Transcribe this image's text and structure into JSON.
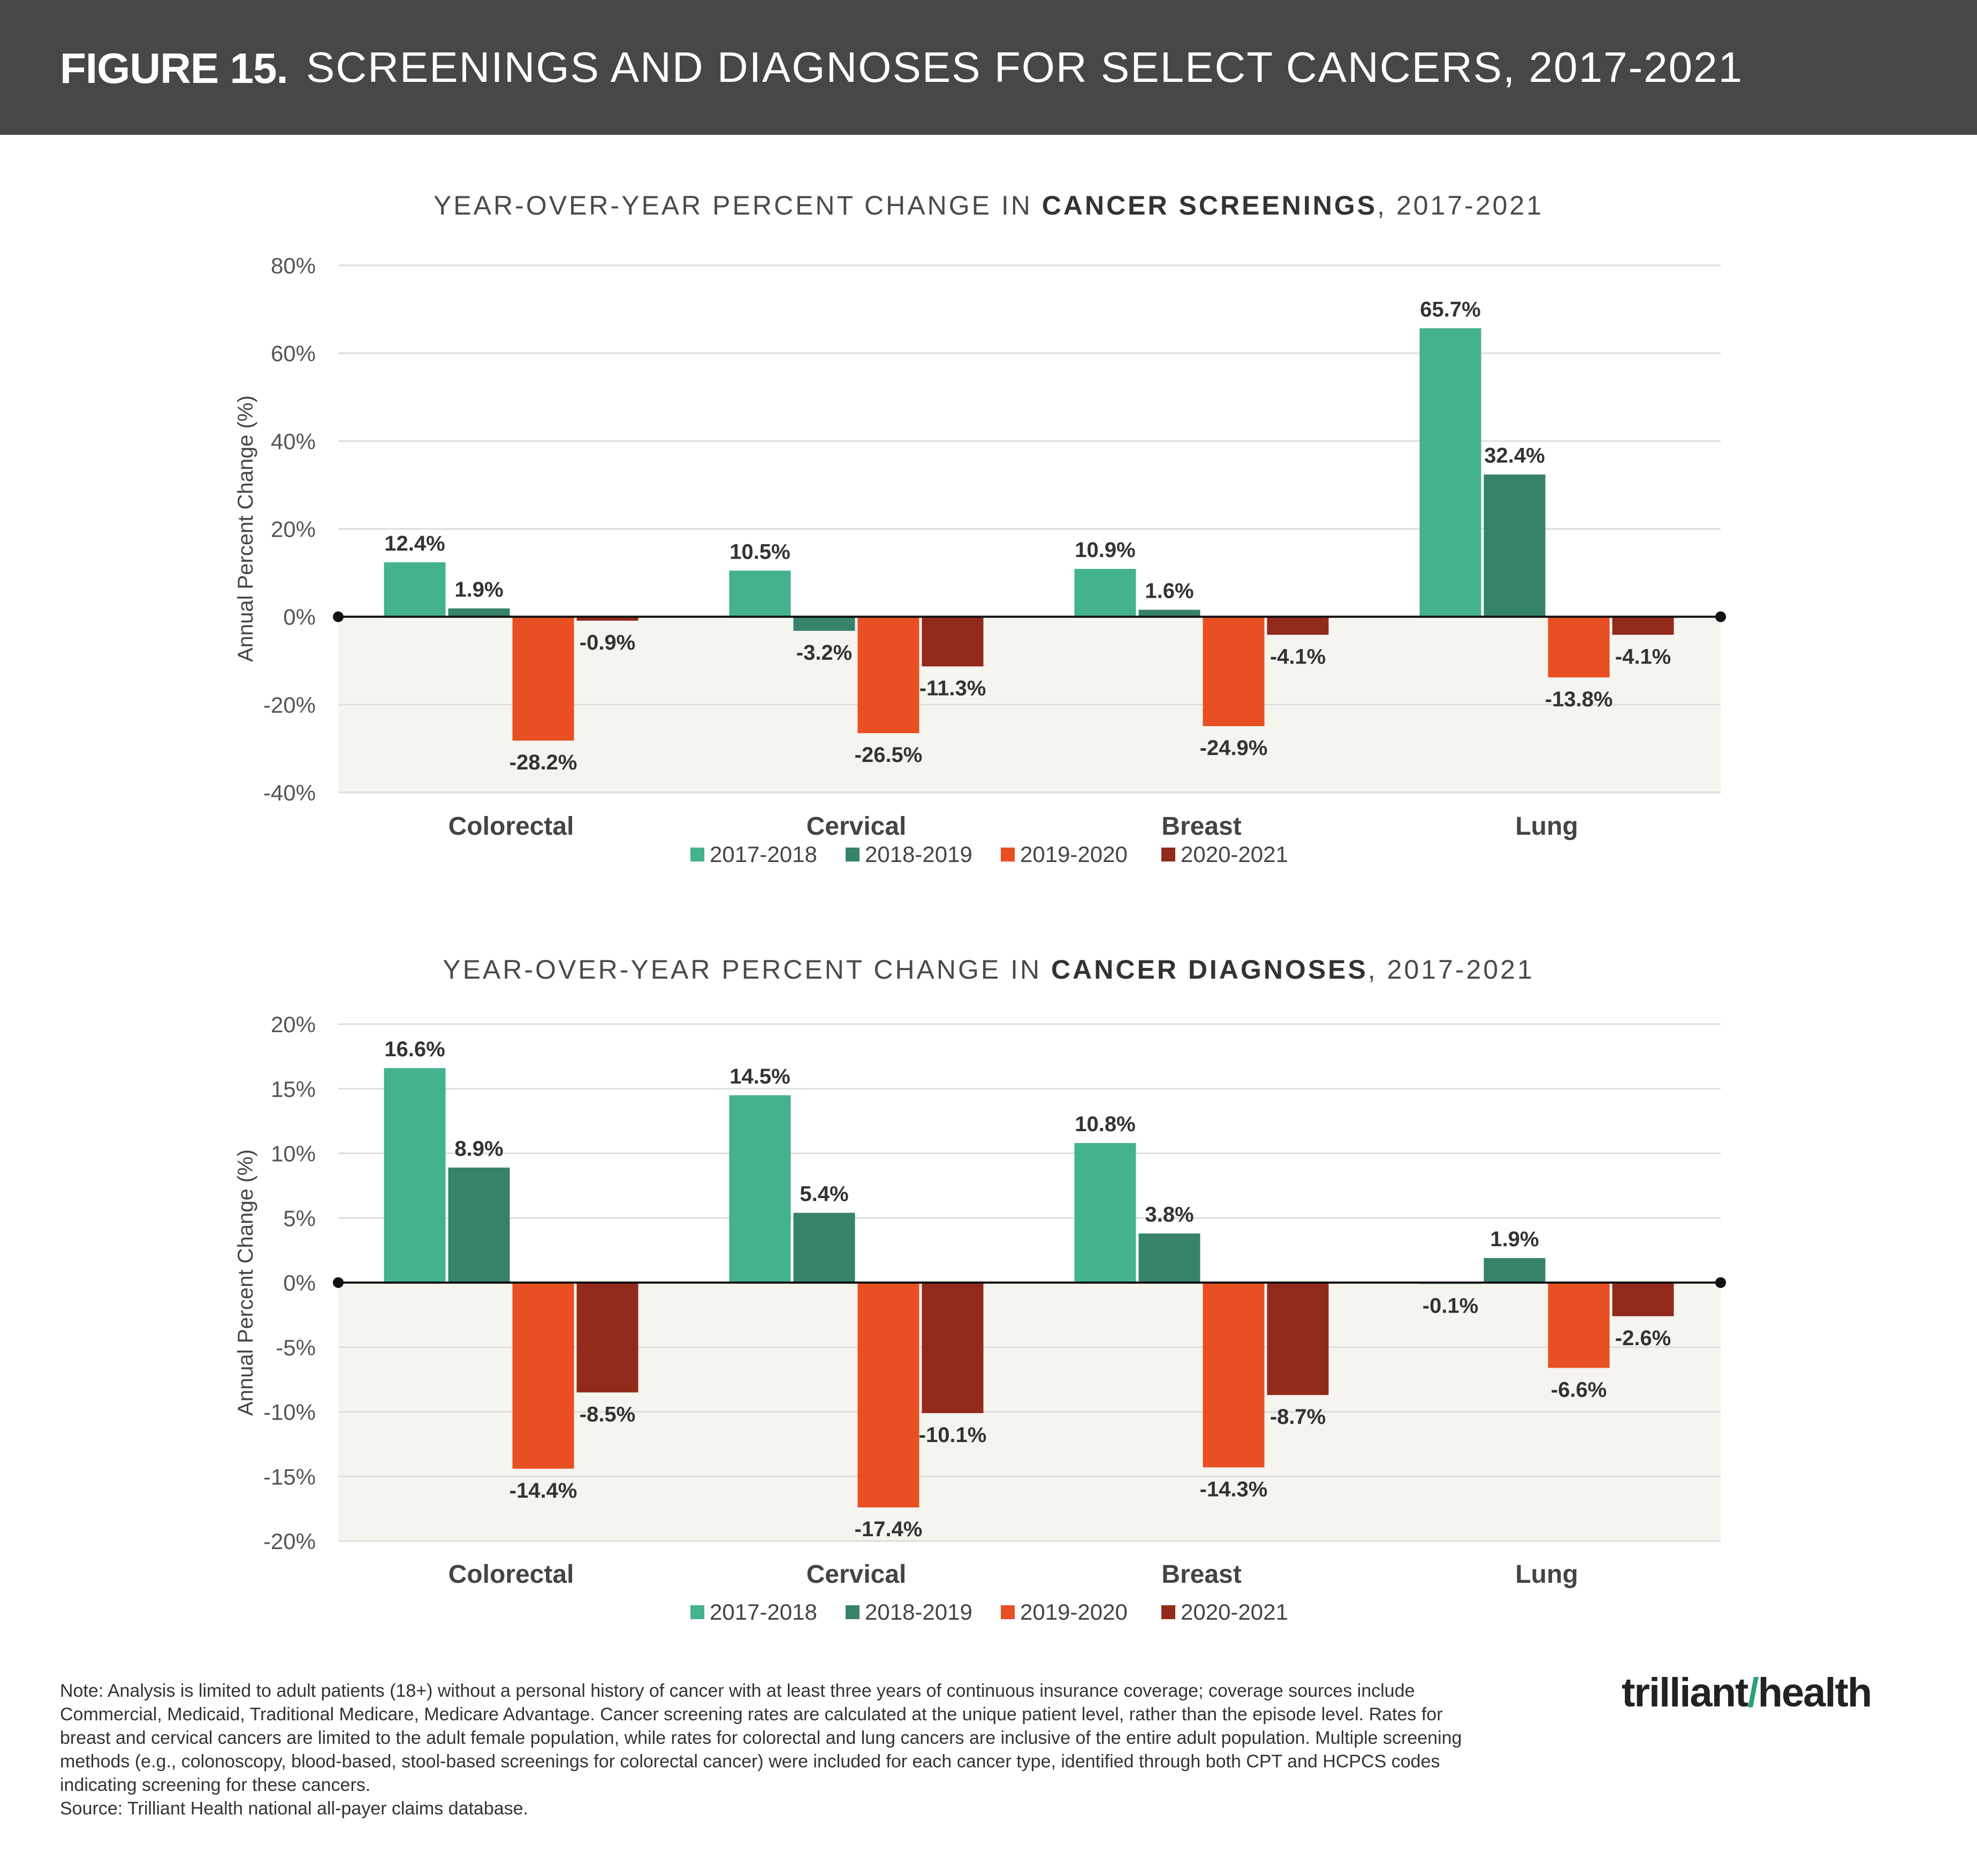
{
  "header": {
    "figure_label": "FIGURE 15.",
    "title": "SCREENINGS AND DIAGNOSES FOR SELECT CANCERS, 2017-2021"
  },
  "colors": {
    "2017-2018": "#43b28d",
    "2018-2019": "#36826a",
    "2019-2020": "#e84f22",
    "2020-2021": "#922a1c",
    "negative_band": "#f5f4ef",
    "header_bg": "#474747"
  },
  "chart_data": [
    {
      "type": "bar",
      "title_pre": "YEAR-OVER-YEAR PERCENT CHANGE IN ",
      "title_bold": "CANCER SCREENINGS",
      "title_post": ", 2017-2021",
      "ylabel": "Annual Percent Change (%)",
      "xlabel": "",
      "ylim": [
        -40,
        80
      ],
      "yticks": [
        80,
        60,
        40,
        20,
        0,
        -20,
        -40
      ],
      "ytick_labels": [
        "80%",
        "60%",
        "40%",
        "20%",
        "0%",
        "-20%",
        "-40%"
      ],
      "categories": [
        "Colorectal",
        "Cervical",
        "Breast",
        "Lung"
      ],
      "series": [
        {
          "name": "2017-2018",
          "values": [
            12.4,
            10.5,
            10.9,
            65.7
          ],
          "labels": [
            "12.4%",
            "10.5%",
            "10.9%",
            "65.7%"
          ]
        },
        {
          "name": "2018-2019",
          "values": [
            1.9,
            -3.2,
            1.6,
            32.4
          ],
          "labels": [
            "1.9%",
            "-3.2%",
            "1.6%",
            "32.4%"
          ]
        },
        {
          "name": "2019-2020",
          "values": [
            -28.2,
            -26.5,
            -24.9,
            -13.8
          ],
          "labels": [
            "-28.2%",
            "-26.5%",
            "-24.9%",
            "-13.8%"
          ]
        },
        {
          "name": "2020-2021",
          "values": [
            -0.9,
            -11.3,
            -4.1,
            -4.1
          ],
          "labels": [
            "-0.9%",
            "-11.3%",
            "-4.1%",
            "-4.1%"
          ]
        }
      ],
      "grid": true,
      "legend": "bottom"
    },
    {
      "type": "bar",
      "title_pre": "YEAR-OVER-YEAR PERCENT CHANGE IN ",
      "title_bold": "CANCER DIAGNOSES",
      "title_post": ", 2017-2021",
      "ylabel": "Annual Percent Change (%)",
      "xlabel": "",
      "ylim": [
        -20,
        20
      ],
      "yticks": [
        20,
        15,
        10,
        5,
        0,
        -5,
        -10,
        -15,
        -20
      ],
      "ytick_labels": [
        "20%",
        "15%",
        "10%",
        "5%",
        "0%",
        "-5%",
        "-10%",
        "-15%",
        "-20%"
      ],
      "categories": [
        "Colorectal",
        "Cervical",
        "Breast",
        "Lung"
      ],
      "series": [
        {
          "name": "2017-2018",
          "values": [
            16.6,
            14.5,
            10.8,
            -0.1
          ],
          "labels": [
            "16.6%",
            "14.5%",
            "10.8%",
            "-0.1%"
          ]
        },
        {
          "name": "2018-2019",
          "values": [
            8.9,
            5.4,
            3.8,
            1.9
          ],
          "labels": [
            "8.9%",
            "5.4%",
            "3.8%",
            "1.9%"
          ]
        },
        {
          "name": "2019-2020",
          "values": [
            -14.4,
            -17.4,
            -14.3,
            -6.6
          ],
          "labels": [
            "-14.4%",
            "-17.4%",
            "-14.3%",
            "-6.6%"
          ]
        },
        {
          "name": "2020-2021",
          "values": [
            -8.5,
            -10.1,
            -8.7,
            -2.6
          ],
          "labels": [
            "-8.5%",
            "-10.1%",
            "-8.7%",
            "-2.6%"
          ]
        }
      ],
      "grid": true,
      "legend": "bottom"
    }
  ],
  "note": {
    "lines": [
      "Note: Analysis is limited to adult patients (18+) without a personal history of cancer with at least three years of continuous insurance coverage; coverage sources include",
      "Commercial, Medicaid, Traditional Medicare, Medicare Advantage. Cancer screening rates are calculated at the unique patient level, rather than the episode level. Rates for",
      "breast and cervical cancers are limited to the adult female population, while rates for colorectal and lung cancers are inclusive of the entire adult population. Multiple screening",
      "methods (e.g., colonoscopy, blood-based, stool-based screenings for colorectal cancer) were included for each cancer type, identified through both CPT and HCPCS codes",
      "indicating screening for these cancers."
    ],
    "source": "Source: Trilliant Health national all-payer claims database."
  },
  "logo": {
    "part1": "trilliant",
    "slash": "/",
    "part2": "health"
  }
}
